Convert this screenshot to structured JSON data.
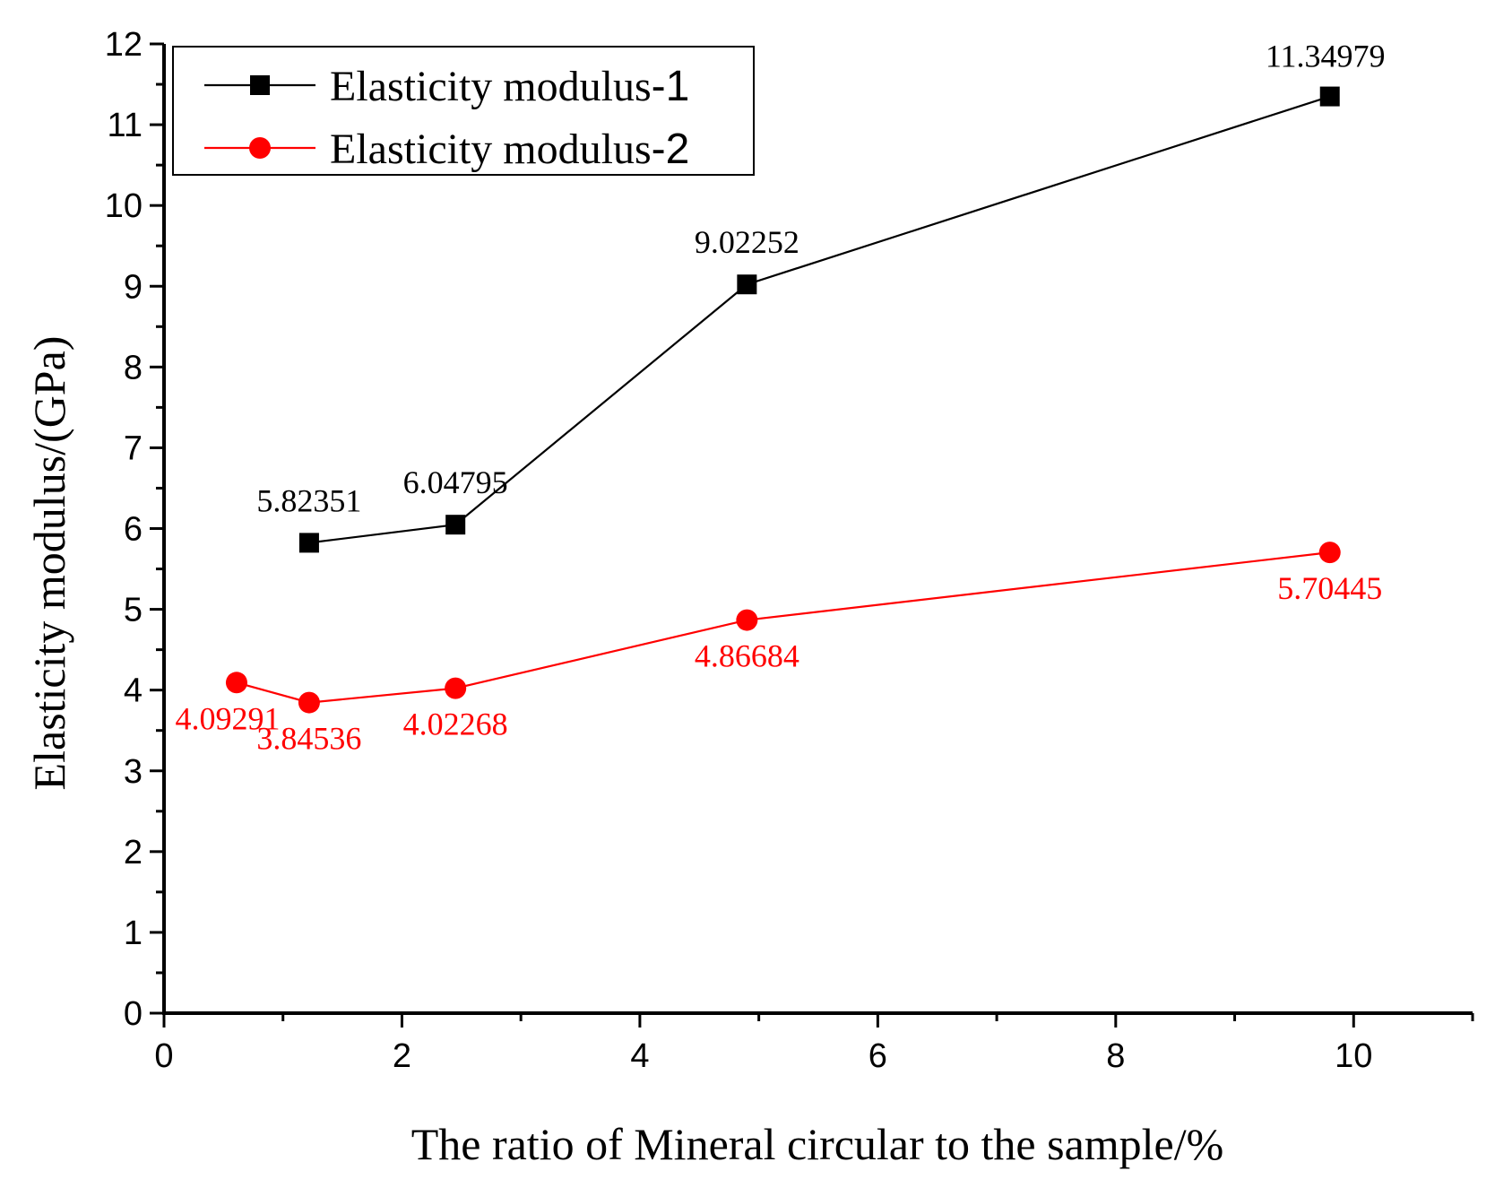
{
  "chart_data": {
    "type": "line",
    "title": "",
    "xlabel": "The ratio of Mineral circular to the sample/%",
    "ylabel": "Elasticity modulus/(GPa)",
    "xlim": [
      0,
      11
    ],
    "ylim": [
      0,
      12
    ],
    "x_ticks": [
      0,
      2,
      4,
      6,
      8,
      10
    ],
    "y_ticks": [
      0,
      1,
      2,
      3,
      4,
      5,
      6,
      7,
      8,
      9,
      10,
      11,
      12
    ],
    "grid": false,
    "legend_position": "top-left",
    "series": [
      {
        "name": "Elasticity modulus-1",
        "name_prefix": "Elasticity modulus",
        "name_suffix": "-1",
        "color": "#000000",
        "marker": "square",
        "points": [
          {
            "x": 1.22,
            "y": 5.82351,
            "label": "5.82351"
          },
          {
            "x": 2.45,
            "y": 6.04795,
            "label": "6.04795"
          },
          {
            "x": 4.9,
            "y": 9.02252,
            "label": "9.02252"
          },
          {
            "x": 9.8,
            "y": 11.34979,
            "label": "11.34979"
          }
        ]
      },
      {
        "name": "Elasticity modulus-2",
        "name_prefix": "Elasticity modulus",
        "name_suffix": "-2",
        "color": "#ff0000",
        "marker": "circle",
        "points": [
          {
            "x": 0.61,
            "y": 4.09291,
            "label": "4.09291"
          },
          {
            "x": 1.22,
            "y": 3.84536,
            "label": "3.84536"
          },
          {
            "x": 2.45,
            "y": 4.02268,
            "label": "4.02268"
          },
          {
            "x": 4.9,
            "y": 4.86684,
            "label": "4.86684"
          },
          {
            "x": 9.8,
            "y": 5.70445,
            "label": "5.70445"
          }
        ]
      }
    ]
  }
}
